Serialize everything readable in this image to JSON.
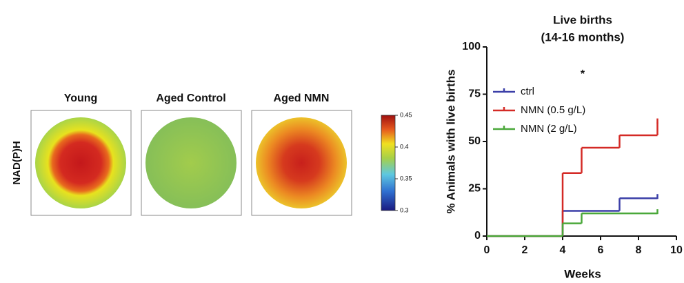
{
  "chart_data": [
    {
      "type": "heatmap",
      "ylabel": "NAD(P)H",
      "panels": [
        "Young",
        "Aged Control",
        "Aged NMN"
      ],
      "colorbar": {
        "ylim": [
          0.3,
          0.45
        ],
        "yticks": [
          0.3,
          0.35,
          0.4,
          0.45
        ]
      }
    },
    {
      "type": "step",
      "title": "Live births",
      "subtitle": "(14-16 months)",
      "xlabel": "Weeks",
      "ylabel": "% Animals with live births",
      "annotation": "*",
      "xlim": [
        0,
        10
      ],
      "xticks": [
        0,
        2,
        4,
        6,
        8,
        10
      ],
      "ylim": [
        0,
        100
      ],
      "yticks": [
        0,
        25,
        50,
        75,
        100
      ],
      "legend": "upper left",
      "series": [
        {
          "name": "ctrl",
          "color": "#3b3fa8",
          "x": [
            0,
            4,
            7,
            9
          ],
          "values": [
            0,
            13.3,
            20,
            20
          ]
        },
        {
          "name": "NMN (0.5 g/L)",
          "color": "#d42a26",
          "x": [
            0,
            4,
            5,
            7,
            9
          ],
          "values": [
            0,
            33.3,
            46.7,
            53.3,
            60
          ]
        },
        {
          "name": "NMN (2 g/L)",
          "color": "#4aa83a",
          "x": [
            0,
            4,
            5,
            9
          ],
          "values": [
            0,
            6.7,
            12,
            12
          ]
        }
      ]
    }
  ]
}
